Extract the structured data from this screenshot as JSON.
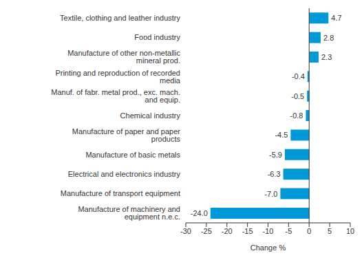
{
  "chart_data": {
    "type": "bar",
    "orientation": "horizontal",
    "categories": [
      "Textile, clothing and leather industry",
      "Food industry",
      "Manufacture of other non-metallic mineral prod.",
      "Printing and reproduction of recorded media",
      "Manuf. of fabr. metal prod., exc. mach. and equip.",
      "Chemical industry",
      "Manufacture of paper and paper products",
      "Manufacture of basic metals",
      "Electrical and electronics industry",
      "Manufacture of transport equipment",
      "Manufacture of machinery and equipment n.e.c."
    ],
    "values": [
      4.7,
      2.8,
      2.3,
      -0.4,
      -0.5,
      -0.8,
      -4.5,
      -5.9,
      -6.3,
      -7.0,
      -24.0
    ],
    "value_labels": [
      "4.7",
      "2.8",
      "2.3",
      "-0.4",
      "-0.5",
      "-0.8",
      "-4.5",
      "-5.9",
      "-6.3",
      "-7.0",
      "-24.0"
    ],
    "data_labels": true,
    "color": "#0099d8",
    "xlabel": "Change %",
    "xlim": [
      -30,
      10
    ],
    "xticks": [
      -30,
      -25,
      -20,
      -15,
      -10,
      -5,
      0,
      5,
      10
    ],
    "grid": false
  }
}
